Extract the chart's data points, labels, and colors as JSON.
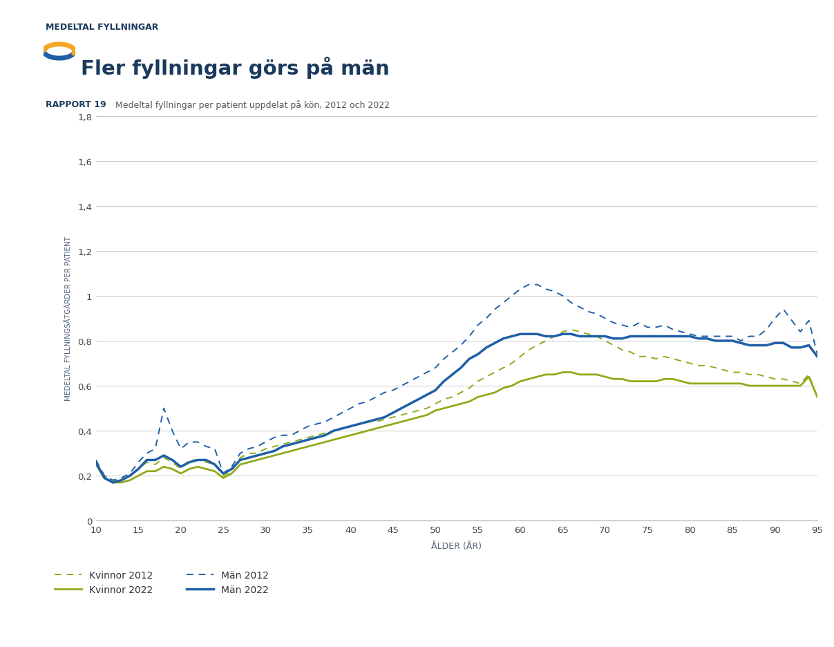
{
  "title_top": "MEDELTAL FYLLNINGAR",
  "title_main": "Fler fyllningar görs på män",
  "report_label": "RAPPORT 19",
  "report_text": "Medeltal fyllningar per patient uppdelat på kön, 2012 och 2022",
  "xlabel": "ÅLDER (ÅR)",
  "ylabel": "MEDELTAL FYLLNINGSÅTGÄRDER PER PATIENT",
  "ylim": [
    0,
    1.8
  ],
  "xlim": [
    10,
    95
  ],
  "yticks": [
    0,
    0.2,
    0.4,
    0.6,
    0.8,
    1.0,
    1.2,
    1.4,
    1.6,
    1.8
  ],
  "xticks": [
    10,
    15,
    20,
    25,
    30,
    35,
    40,
    45,
    50,
    55,
    60,
    65,
    70,
    75,
    80,
    85,
    90,
    95
  ],
  "color_kvinnor": "#8faa1b",
  "color_man": "#1f5fa6",
  "background_color": "#ffffff",
  "ages": [
    10,
    11,
    12,
    13,
    14,
    15,
    16,
    17,
    18,
    19,
    20,
    21,
    22,
    23,
    24,
    25,
    26,
    27,
    28,
    29,
    30,
    31,
    32,
    33,
    34,
    35,
    36,
    37,
    38,
    39,
    40,
    41,
    42,
    43,
    44,
    45,
    46,
    47,
    48,
    49,
    50,
    51,
    52,
    53,
    54,
    55,
    56,
    57,
    58,
    59,
    60,
    61,
    62,
    63,
    64,
    65,
    66,
    67,
    68,
    69,
    70,
    71,
    72,
    73,
    74,
    75,
    76,
    77,
    78,
    79,
    80,
    81,
    82,
    83,
    84,
    85,
    86,
    87,
    88,
    89,
    90,
    91,
    92,
    93,
    94,
    95
  ],
  "kvinnor_2012": [
    0.26,
    0.2,
    0.18,
    0.18,
    0.2,
    0.23,
    0.26,
    0.25,
    0.28,
    0.26,
    0.23,
    0.27,
    0.27,
    0.26,
    0.25,
    0.2,
    0.22,
    0.28,
    0.3,
    0.3,
    0.32,
    0.33,
    0.34,
    0.35,
    0.36,
    0.37,
    0.38,
    0.39,
    0.4,
    0.41,
    0.42,
    0.43,
    0.44,
    0.44,
    0.45,
    0.46,
    0.47,
    0.48,
    0.49,
    0.5,
    0.52,
    0.54,
    0.55,
    0.57,
    0.59,
    0.62,
    0.64,
    0.66,
    0.68,
    0.7,
    0.73,
    0.76,
    0.78,
    0.8,
    0.82,
    0.84,
    0.85,
    0.84,
    0.83,
    0.82,
    0.8,
    0.78,
    0.76,
    0.75,
    0.73,
    0.73,
    0.72,
    0.73,
    0.72,
    0.71,
    0.7,
    0.69,
    0.69,
    0.68,
    0.67,
    0.66,
    0.66,
    0.65,
    0.65,
    0.64,
    0.63,
    0.63,
    0.62,
    0.61,
    0.65,
    0.55
  ],
  "kvinnor_2022": [
    0.25,
    0.19,
    0.17,
    0.17,
    0.18,
    0.2,
    0.22,
    0.22,
    0.24,
    0.23,
    0.21,
    0.23,
    0.24,
    0.23,
    0.22,
    0.19,
    0.21,
    0.25,
    0.26,
    0.27,
    0.28,
    0.29,
    0.3,
    0.31,
    0.32,
    0.33,
    0.34,
    0.35,
    0.36,
    0.37,
    0.38,
    0.39,
    0.4,
    0.41,
    0.42,
    0.43,
    0.44,
    0.45,
    0.46,
    0.47,
    0.49,
    0.5,
    0.51,
    0.52,
    0.53,
    0.55,
    0.56,
    0.57,
    0.59,
    0.6,
    0.62,
    0.63,
    0.64,
    0.65,
    0.65,
    0.66,
    0.66,
    0.65,
    0.65,
    0.65,
    0.64,
    0.63,
    0.63,
    0.62,
    0.62,
    0.62,
    0.62,
    0.63,
    0.63,
    0.62,
    0.61,
    0.61,
    0.61,
    0.61,
    0.61,
    0.61,
    0.61,
    0.6,
    0.6,
    0.6,
    0.6,
    0.6,
    0.6,
    0.6,
    0.64,
    0.55
  ],
  "man_2012": [
    0.27,
    0.2,
    0.18,
    0.19,
    0.21,
    0.26,
    0.3,
    0.32,
    0.5,
    0.4,
    0.32,
    0.35,
    0.35,
    0.33,
    0.32,
    0.21,
    0.24,
    0.3,
    0.32,
    0.33,
    0.35,
    0.37,
    0.38,
    0.38,
    0.4,
    0.42,
    0.43,
    0.44,
    0.46,
    0.48,
    0.5,
    0.52,
    0.53,
    0.55,
    0.57,
    0.58,
    0.6,
    0.62,
    0.64,
    0.66,
    0.68,
    0.72,
    0.75,
    0.78,
    0.82,
    0.87,
    0.9,
    0.94,
    0.97,
    1.0,
    1.03,
    1.05,
    1.05,
    1.03,
    1.02,
    1.0,
    0.97,
    0.95,
    0.93,
    0.92,
    0.9,
    0.88,
    0.87,
    0.86,
    0.88,
    0.86,
    0.86,
    0.87,
    0.85,
    0.84,
    0.83,
    0.82,
    0.82,
    0.82,
    0.82,
    0.82,
    0.8,
    0.82,
    0.82,
    0.85,
    0.9,
    0.94,
    0.89,
    0.84,
    0.89,
    0.74
  ],
  "man_2022": [
    0.26,
    0.19,
    0.17,
    0.18,
    0.2,
    0.23,
    0.27,
    0.27,
    0.29,
    0.27,
    0.24,
    0.26,
    0.27,
    0.27,
    0.25,
    0.21,
    0.23,
    0.27,
    0.28,
    0.29,
    0.3,
    0.31,
    0.33,
    0.34,
    0.35,
    0.36,
    0.37,
    0.38,
    0.4,
    0.41,
    0.42,
    0.43,
    0.44,
    0.45,
    0.46,
    0.48,
    0.5,
    0.52,
    0.54,
    0.56,
    0.58,
    0.62,
    0.65,
    0.68,
    0.72,
    0.74,
    0.77,
    0.79,
    0.81,
    0.82,
    0.83,
    0.83,
    0.83,
    0.82,
    0.82,
    0.83,
    0.83,
    0.82,
    0.82,
    0.82,
    0.82,
    0.81,
    0.81,
    0.82,
    0.82,
    0.82,
    0.82,
    0.82,
    0.82,
    0.82,
    0.82,
    0.81,
    0.81,
    0.8,
    0.8,
    0.8,
    0.79,
    0.78,
    0.78,
    0.78,
    0.79,
    0.79,
    0.77,
    0.77,
    0.78,
    0.73
  ]
}
